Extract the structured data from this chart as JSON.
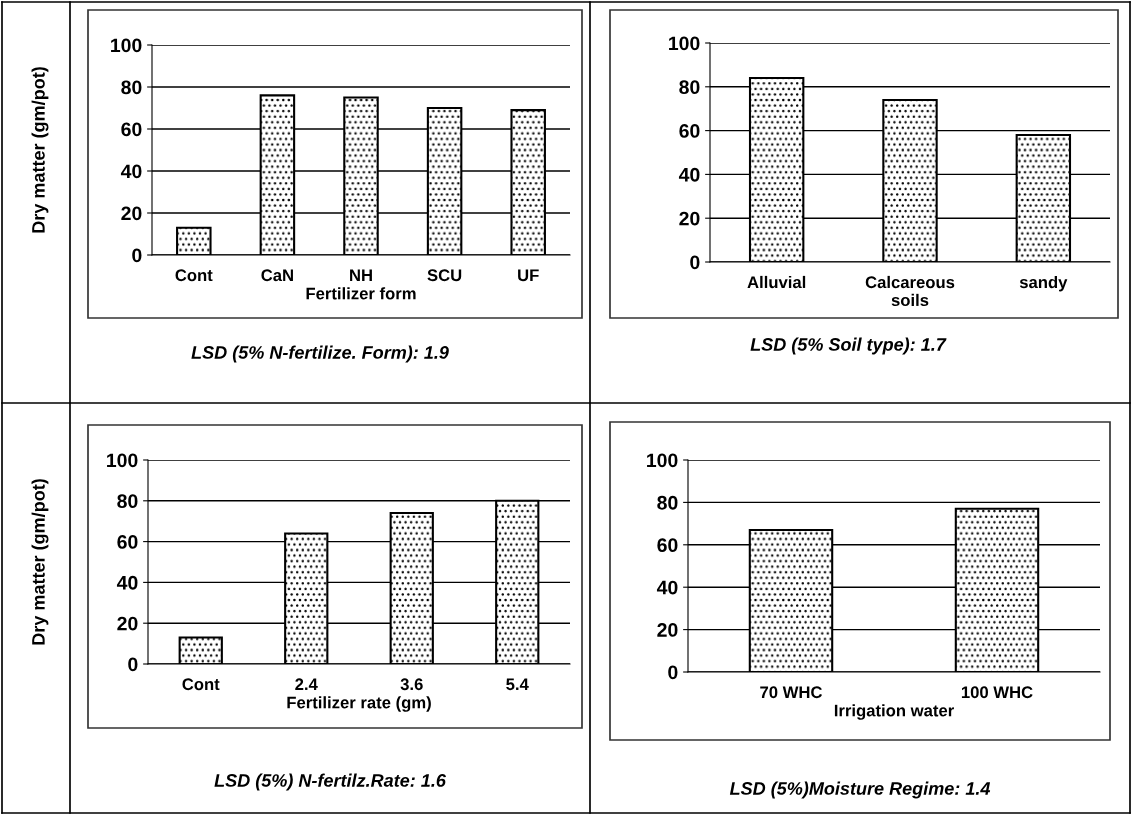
{
  "chart_data": [
    {
      "type": "bar",
      "categories": [
        "Cont",
        "CaN",
        "NH",
        "SCU",
        "UF"
      ],
      "values": [
        13,
        76,
        75,
        70,
        69
      ],
      "color": "#000000",
      "ylim": [
        0,
        100
      ],
      "yticks": [
        0,
        20,
        40,
        60,
        80,
        100
      ],
      "grid": "y",
      "xlabel": "Fertilizer form",
      "ylabel": "Dry matter (gm/pot)",
      "annotations": [
        "LSD (5% N-fertilize. Form): 1.9"
      ]
    },
    {
      "type": "bar",
      "categories": [
        "Alluvial",
        "Calcareous\nsoils",
        "sandy"
      ],
      "values": [
        84,
        74,
        58
      ],
      "color": "#000000",
      "ylim": [
        0,
        100
      ],
      "yticks": [
        0,
        20,
        40,
        60,
        80,
        100
      ],
      "grid": "y",
      "annotations": [
        "LSD (5% Soil type): 1.7"
      ]
    },
    {
      "type": "bar",
      "categories": [
        "Cont",
        "2.4",
        "3.6",
        "5.4"
      ],
      "values": [
        13,
        64,
        74,
        80
      ],
      "color": "#000000",
      "ylim": [
        0,
        100
      ],
      "yticks": [
        0,
        20,
        40,
        60,
        80,
        100
      ],
      "grid": "y",
      "xlabel": "Fertilizer rate (gm)",
      "ylabel": "Dry matter (gm/pot)",
      "annotations": [
        "LSD (5%) N-fertilz.Rate: 1.6"
      ]
    },
    {
      "type": "bar",
      "categories": [
        "70 WHC",
        "100 WHC"
      ],
      "values": [
        67,
        77
      ],
      "color": "#000000",
      "ylim": [
        0,
        100
      ],
      "yticks": [
        0,
        20,
        40,
        60,
        80,
        100
      ],
      "grid": "y",
      "xlabel": "Irrigation water",
      "annotations": [
        "LSD (5%)Moisture Regime: 1.4"
      ]
    }
  ]
}
